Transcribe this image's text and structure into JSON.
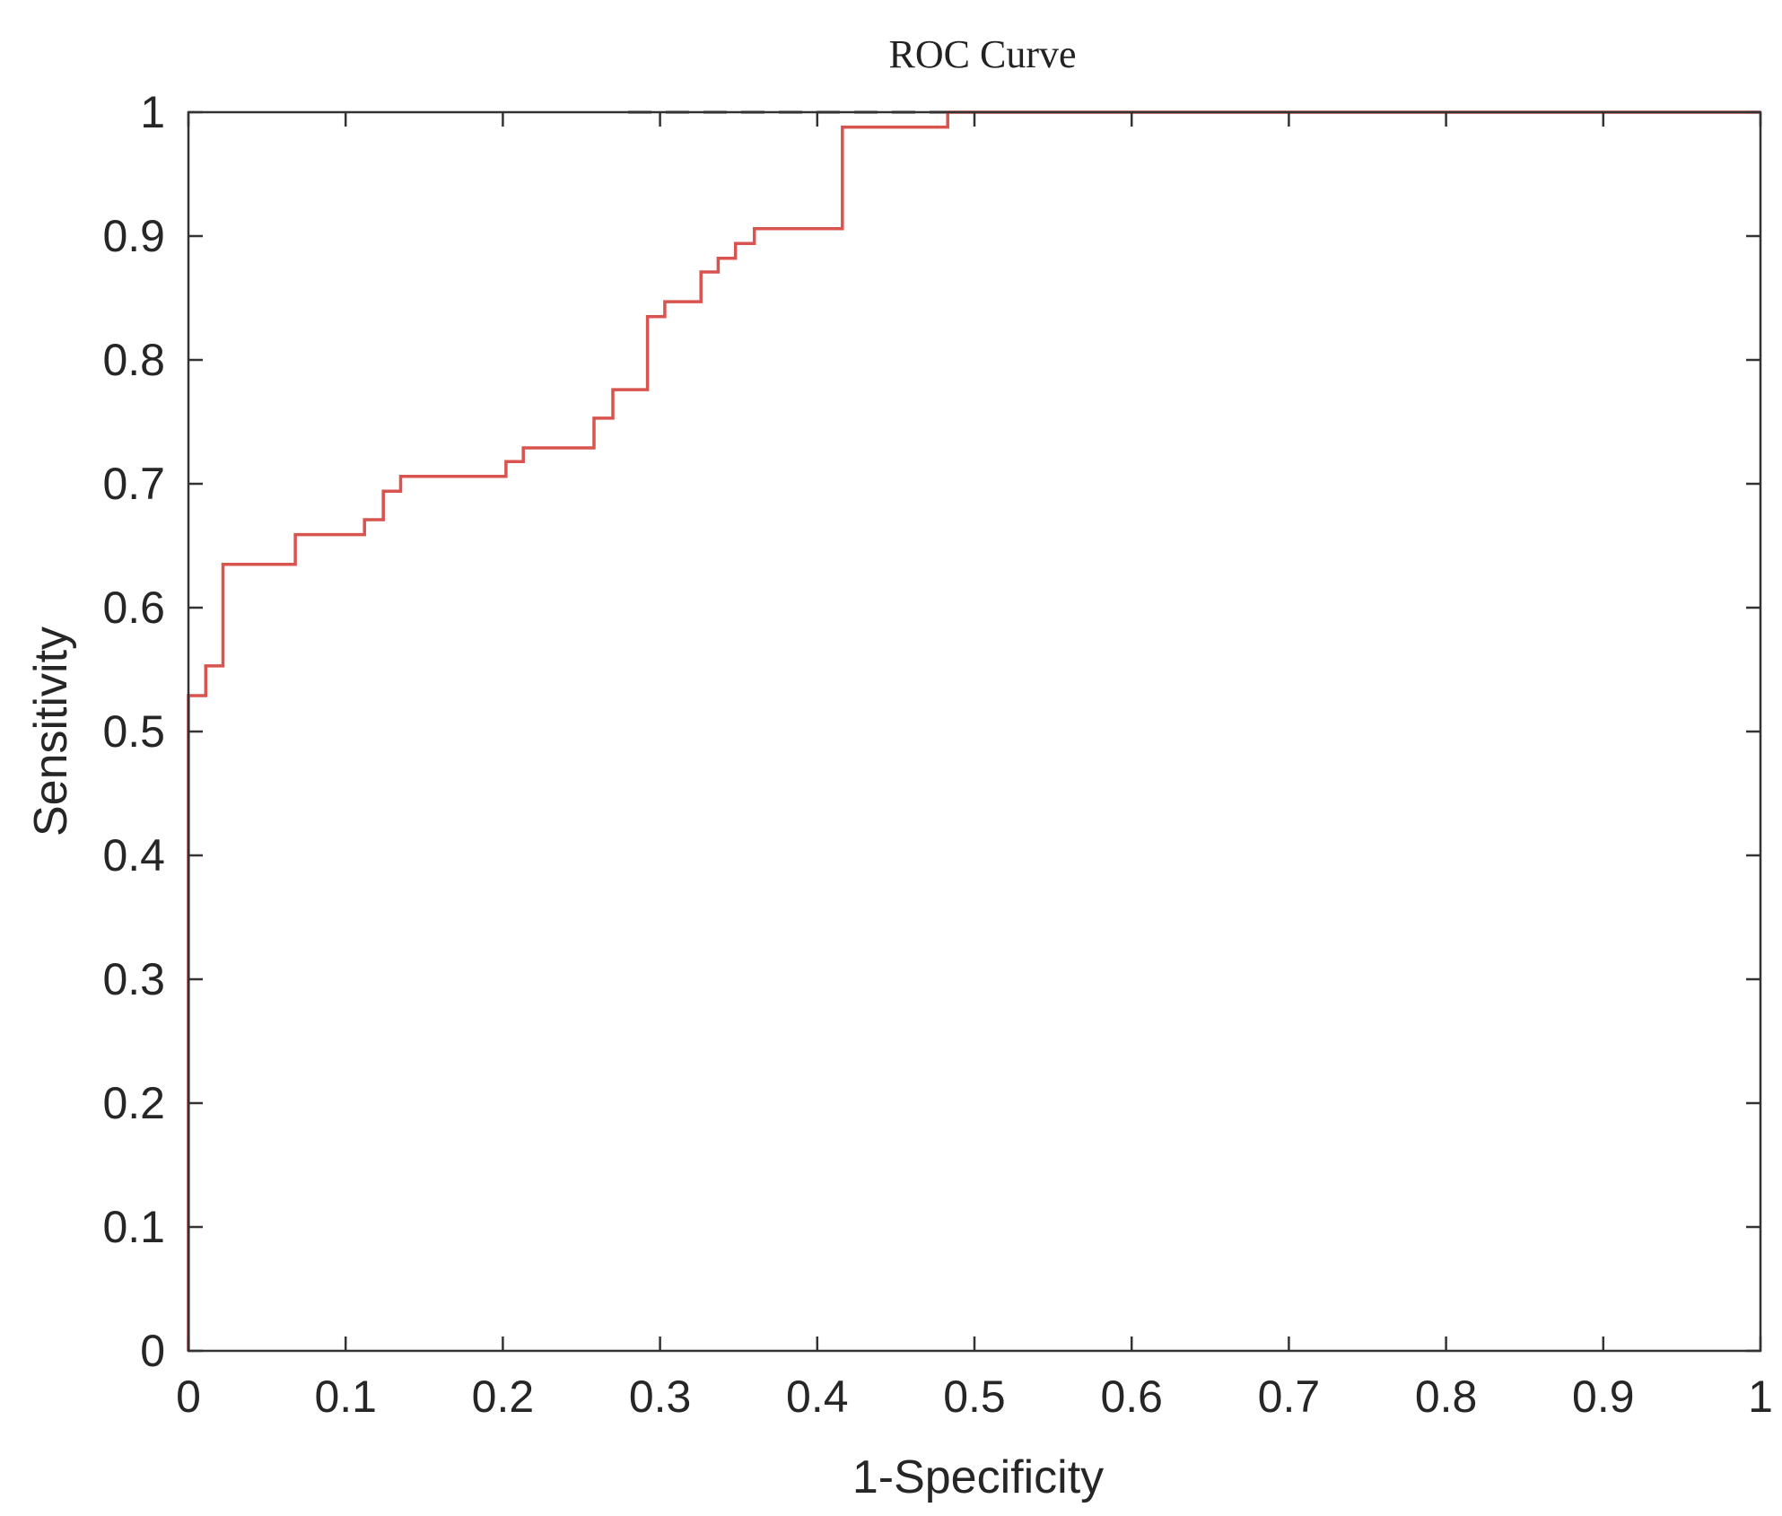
{
  "chart_data": {
    "type": "line",
    "title": "ROC Curve",
    "xlabel": "1-Specificity",
    "ylabel": "Sensitivity",
    "xlim": [
      0,
      1
    ],
    "ylim": [
      0,
      1
    ],
    "xticks": [
      "0",
      "0.1",
      "0.2",
      "0.3",
      "0.4",
      "0.5",
      "0.6",
      "0.7",
      "0.8",
      "0.9",
      "1"
    ],
    "yticks": [
      "0",
      "0.1",
      "0.2",
      "0.3",
      "0.4",
      "0.5",
      "0.6",
      "0.7",
      "0.8",
      "0.9",
      "1"
    ],
    "grid": false,
    "series": [
      {
        "color": "#d9534f",
        "style": "step",
        "x": [
          0,
          0,
          0.011,
          0.011,
          0.022,
          0.022,
          0.068,
          0.068,
          0.112,
          0.112,
          0.124,
          0.124,
          0.135,
          0.135,
          0.202,
          0.202,
          0.213,
          0.213,
          0.258,
          0.258,
          0.27,
          0.27,
          0.292,
          0.292,
          0.303,
          0.303,
          0.326,
          0.326,
          0.337,
          0.337,
          0.348,
          0.348,
          0.36,
          0.36,
          0.416,
          0.416,
          0.483,
          0.483,
          1
        ],
        "y": [
          0,
          0.529,
          0.529,
          0.553,
          0.553,
          0.635,
          0.635,
          0.659,
          0.659,
          0.671,
          0.671,
          0.694,
          0.694,
          0.706,
          0.706,
          0.718,
          0.718,
          0.729,
          0.729,
          0.753,
          0.753,
          0.776,
          0.776,
          0.835,
          0.835,
          0.847,
          0.847,
          0.871,
          0.871,
          0.882,
          0.882,
          0.894,
          0.894,
          0.906,
          0.906,
          0.988,
          0.988,
          1,
          1
        ]
      }
    ]
  }
}
